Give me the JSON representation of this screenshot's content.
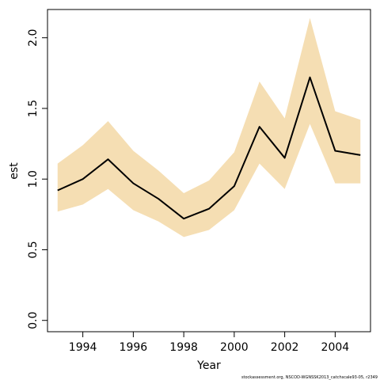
{
  "chart_data": {
    "type": "line",
    "title": "",
    "xlabel": "Year",
    "ylabel": "est",
    "xlim": [
      1992.6,
      2005.4
    ],
    "ylim": [
      -0.08,
      2.2
    ],
    "x_ticks": [
      1994,
      1996,
      1998,
      2000,
      2002,
      2004
    ],
    "x_tick_labels": [
      "1994",
      "1996",
      "1998",
      "2000",
      "2002",
      "2004"
    ],
    "y_ticks": [
      0.0,
      0.5,
      1.0,
      1.5,
      2.0
    ],
    "y_tick_labels": [
      "0.0",
      "0.5",
      "1.0",
      "1.5",
      "2.0"
    ],
    "grid": false,
    "series": [
      {
        "x": [
          1993,
          1994,
          1995,
          1996,
          1997,
          1998,
          1999,
          2000,
          2001,
          2002,
          2003,
          2004,
          2005
        ],
        "values": [
          0.92,
          1.0,
          1.14,
          0.97,
          0.86,
          0.72,
          0.79,
          0.95,
          1.37,
          1.15,
          1.72,
          1.2,
          1.17
        ],
        "lower": [
          0.77,
          0.82,
          0.93,
          0.78,
          0.7,
          0.59,
          0.64,
          0.78,
          1.11,
          0.93,
          1.39,
          0.97,
          0.97
        ],
        "upper": [
          1.11,
          1.24,
          1.41,
          1.2,
          1.06,
          0.9,
          0.99,
          1.19,
          1.69,
          1.43,
          2.14,
          1.48,
          1.42
        ]
      }
    ],
    "colors": {
      "band": "#F5DEB3",
      "line": "#000000"
    },
    "footnote": "stockassessment.org, NSCOD-WGNSSK2013_catchscale93-05, r2349"
  }
}
